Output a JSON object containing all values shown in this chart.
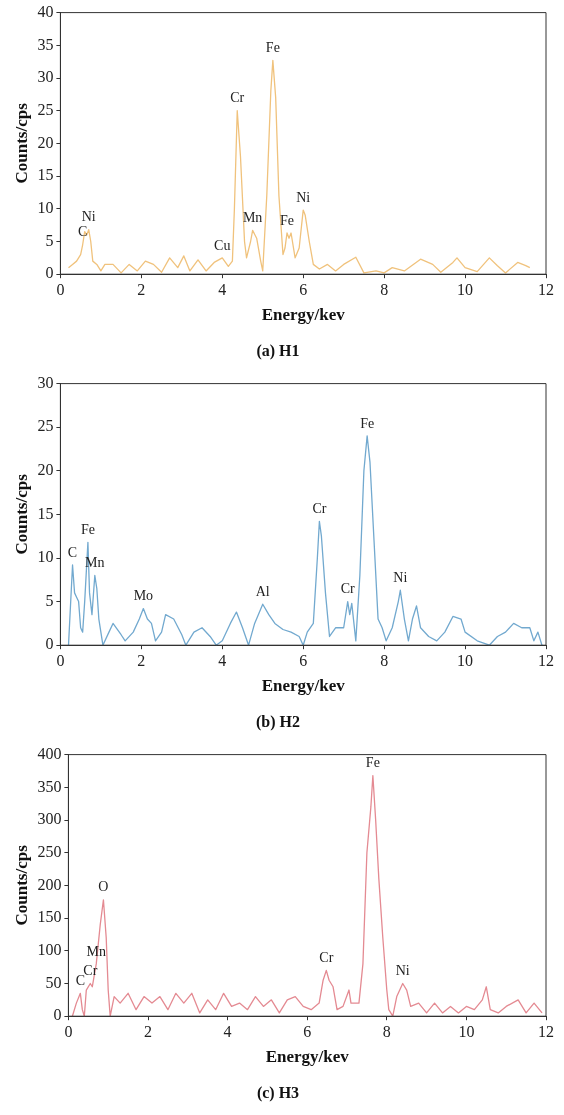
{
  "chart_data": [
    {
      "type": "line",
      "title": "(a) H1",
      "xlabel": "Energy/kev",
      "ylabel": "Counts/cps",
      "color": "#f0c27c",
      "x": [
        0.2,
        0.3,
        0.4,
        0.5,
        0.55,
        0.6,
        0.65,
        0.7,
        0.75,
        0.8,
        0.9,
        1.0,
        1.1,
        1.3,
        1.5,
        1.7,
        1.9,
        2.1,
        2.3,
        2.5,
        2.7,
        2.9,
        3.05,
        3.2,
        3.4,
        3.6,
        3.8,
        4.0,
        4.15,
        4.25,
        4.3,
        4.37,
        4.45,
        4.55,
        4.6,
        4.7,
        4.75,
        4.85,
        4.95,
        5.0,
        5.1,
        5.2,
        5.25,
        5.32,
        5.4,
        5.5,
        5.55,
        5.6,
        5.65,
        5.7,
        5.8,
        5.9,
        6.0,
        6.05,
        6.15,
        6.25,
        6.4,
        6.6,
        6.8,
        7.0,
        7.3,
        7.5,
        7.8,
        8.0,
        8.2,
        8.5,
        8.9,
        9.2,
        9.4,
        9.7,
        9.8,
        10.0,
        10.3,
        10.6,
        10.8,
        11.0,
        11.3,
        11.5,
        11.6
      ],
      "values": [
        1,
        1.5,
        2,
        3,
        4.5,
        6.5,
        6,
        6.8,
        5,
        2,
        1.5,
        0.5,
        1.5,
        1.5,
        0.2,
        1.5,
        0.5,
        2,
        1.5,
        0.3,
        2.5,
        1,
        2.8,
        0.5,
        2.2,
        0.5,
        1.8,
        2.5,
        1.2,
        2,
        10,
        25,
        18,
        5,
        2.5,
        5,
        6.7,
        5.5,
        2,
        0.5,
        12,
        28,
        32.7,
        27,
        12,
        3,
        4,
        6.3,
        5.5,
        6.3,
        2.5,
        4,
        9.8,
        9,
        5,
        1.5,
        0.8,
        1.5,
        0.5,
        1.5,
        2.6,
        0.2,
        0.5,
        0.2,
        1,
        0.5,
        2.3,
        1.5,
        0.3,
        1.8,
        2.5,
        1,
        0.4,
        2.5,
        1.3,
        0.2,
        1.8,
        1.3,
        1
      ],
      "xlim": [
        0,
        12
      ],
      "xticks": [
        0,
        2,
        4,
        6,
        8,
        10,
        12
      ],
      "ylim": [
        0,
        40
      ],
      "yticks": [
        0,
        5,
        10,
        15,
        20,
        25,
        30,
        35,
        40
      ],
      "annotations": [
        {
          "text": "C",
          "x": 0.55,
          "y": 4.5
        },
        {
          "text": "Ni",
          "x": 0.7,
          "y": 6.8
        },
        {
          "text": "Cu",
          "x": 4.0,
          "y": 2.5
        },
        {
          "text": "Cr",
          "x": 4.37,
          "y": 25
        },
        {
          "text": "Mn",
          "x": 4.75,
          "y": 6.7
        },
        {
          "text": "Fe",
          "x": 5.25,
          "y": 32.7
        },
        {
          "text": "Fe",
          "x": 5.6,
          "y": 6.3
        },
        {
          "text": "Ni",
          "x": 6.0,
          "y": 9.8
        }
      ]
    },
    {
      "type": "line",
      "title": "(b) H2",
      "xlabel": "Energy/kev",
      "ylabel": "Counts/cps",
      "color": "#72a9cf",
      "x": [
        0.2,
        0.3,
        0.35,
        0.4,
        0.45,
        0.5,
        0.55,
        0.6,
        0.68,
        0.72,
        0.78,
        0.85,
        0.9,
        0.95,
        1.05,
        1.2,
        1.3,
        1.5,
        1.6,
        1.8,
        1.95,
        2.05,
        2.15,
        2.25,
        2.35,
        2.5,
        2.6,
        2.8,
        3.0,
        3.1,
        3.3,
        3.5,
        3.7,
        3.85,
        4.0,
        4.2,
        4.35,
        4.5,
        4.65,
        4.8,
        5.0,
        5.15,
        5.3,
        5.5,
        5.7,
        5.9,
        6.0,
        6.1,
        6.25,
        6.35,
        6.4,
        6.45,
        6.55,
        6.65,
        6.8,
        7.0,
        7.1,
        7.15,
        7.2,
        7.3,
        7.4,
        7.5,
        7.58,
        7.65,
        7.75,
        7.85,
        7.95,
        8.05,
        8.2,
        8.35,
        8.4,
        8.5,
        8.6,
        8.7,
        8.8,
        8.9,
        9.1,
        9.3,
        9.5,
        9.7,
        9.9,
        10.0,
        10.3,
        10.6,
        10.8,
        11.0,
        11.2,
        11.4,
        11.6,
        11.7,
        11.8,
        11.9
      ],
      "values": [
        0,
        9.2,
        6,
        5.5,
        5,
        2,
        1.5,
        5,
        11.8,
        6,
        3.5,
        8,
        6.5,
        3,
        0,
        1.5,
        2.5,
        1.2,
        0.5,
        1.5,
        3,
        4.2,
        3,
        2.5,
        0.5,
        1.5,
        3.5,
        3,
        1.2,
        0,
        1.5,
        2,
        1,
        0,
        0.5,
        2.5,
        3.8,
        2,
        0,
        2.5,
        4.7,
        3.5,
        2.5,
        1.8,
        1.5,
        1,
        0,
        1.5,
        2.5,
        10,
        14.2,
        12.5,
        6,
        1,
        2,
        2,
        5,
        3.5,
        4.8,
        0.5,
        8,
        20,
        24,
        21,
        12,
        3,
        2,
        0.5,
        2,
        5,
        6.3,
        3,
        0.5,
        3,
        4.5,
        2,
        1,
        0.5,
        1.5,
        3.3,
        3,
        1.5,
        0.5,
        0,
        1,
        1.5,
        2.5,
        2,
        2,
        0.5,
        1.5,
        0
      ],
      "xlim": [
        0,
        12
      ],
      "xticks": [
        0,
        2,
        4,
        6,
        8,
        10,
        12
      ],
      "ylim": [
        0,
        30
      ],
      "yticks": [
        0,
        5,
        10,
        15,
        20,
        25,
        30
      ],
      "annotations": [
        {
          "text": "C",
          "x": 0.3,
          "y": 9.2
        },
        {
          "text": "Fe",
          "x": 0.68,
          "y": 11.8
        },
        {
          "text": "Mn",
          "x": 0.85,
          "y": 8
        },
        {
          "text": "Mo",
          "x": 2.05,
          "y": 4.2
        },
        {
          "text": "Al",
          "x": 5.0,
          "y": 4.7
        },
        {
          "text": "Cr",
          "x": 6.4,
          "y": 14.2
        },
        {
          "text": "Cr",
          "x": 7.1,
          "y": 5
        },
        {
          "text": "Fe",
          "x": 7.58,
          "y": 24
        },
        {
          "text": "Ni",
          "x": 8.4,
          "y": 6.3
        }
      ]
    },
    {
      "type": "line",
      "title": "(c) H3",
      "xlabel": "Energy/kev",
      "ylabel": "Counts/cps",
      "color": "#e48a92",
      "x": [
        0.1,
        0.2,
        0.3,
        0.35,
        0.4,
        0.45,
        0.55,
        0.6,
        0.7,
        0.8,
        0.88,
        0.95,
        1.0,
        1.05,
        1.15,
        1.3,
        1.5,
        1.7,
        1.9,
        2.1,
        2.3,
        2.5,
        2.7,
        2.9,
        3.1,
        3.3,
        3.5,
        3.7,
        3.9,
        4.1,
        4.3,
        4.5,
        4.7,
        4.9,
        5.1,
        5.3,
        5.5,
        5.7,
        5.9,
        6.1,
        6.3,
        6.4,
        6.48,
        6.55,
        6.65,
        6.75,
        6.9,
        7.05,
        7.1,
        7.3,
        7.4,
        7.5,
        7.6,
        7.65,
        7.72,
        7.8,
        7.9,
        8.0,
        8.05,
        8.15,
        8.25,
        8.4,
        8.5,
        8.6,
        8.8,
        9.0,
        9.2,
        9.4,
        9.6,
        9.8,
        10.0,
        10.2,
        10.4,
        10.5,
        10.6,
        10.8,
        11.0,
        11.3,
        11.5,
        11.7,
        11.9
      ],
      "values": [
        0,
        20,
        35,
        10,
        0,
        40,
        50,
        45,
        80,
        140,
        178,
        120,
        40,
        0,
        30,
        20,
        35,
        10,
        30,
        20,
        30,
        10,
        35,
        20,
        35,
        5,
        25,
        10,
        35,
        15,
        20,
        10,
        30,
        15,
        25,
        5,
        25,
        30,
        15,
        10,
        20,
        55,
        70,
        55,
        45,
        10,
        15,
        40,
        20,
        20,
        80,
        250,
        320,
        368,
        300,
        210,
        120,
        40,
        10,
        0,
        30,
        50,
        40,
        15,
        20,
        5,
        20,
        5,
        15,
        5,
        15,
        10,
        25,
        45,
        10,
        5,
        15,
        25,
        5,
        20,
        5
      ],
      "xlim": [
        0,
        12
      ],
      "xticks": [
        0,
        2,
        4,
        6,
        8,
        10,
        12
      ],
      "ylim": [
        0,
        400
      ],
      "yticks": [
        0,
        50,
        100,
        150,
        200,
        250,
        300,
        350,
        400
      ],
      "annotations": [
        {
          "text": "O",
          "x": 0.88,
          "y": 178
        },
        {
          "text": "Mn",
          "x": 0.7,
          "y": 80
        },
        {
          "text": "Cr",
          "x": 0.55,
          "y": 50
        },
        {
          "text": "C",
          "x": 0.3,
          "y": 35
        },
        {
          "text": "Cr",
          "x": 6.48,
          "y": 70
        },
        {
          "text": "Fe",
          "x": 7.65,
          "y": 368
        },
        {
          "text": "Ni",
          "x": 8.4,
          "y": 50
        }
      ]
    }
  ]
}
